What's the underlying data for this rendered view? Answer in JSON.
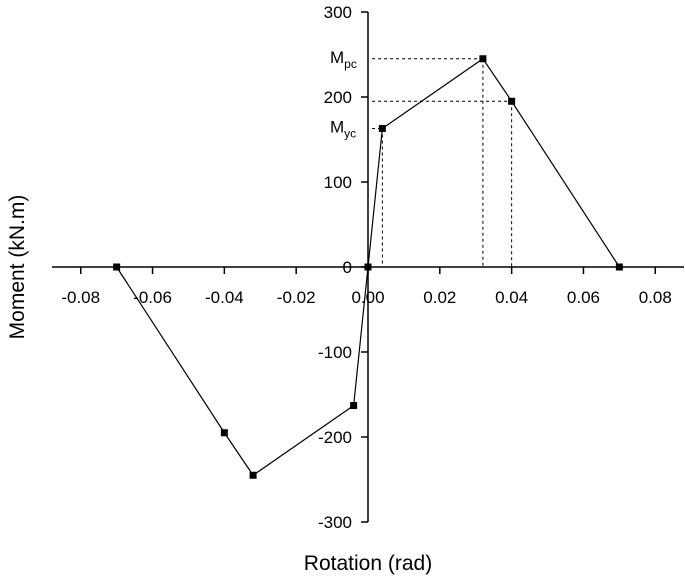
{
  "chart_data": {
    "type": "line",
    "x_label": "Rotation (rad)",
    "y_label": "Moment (kN.m)",
    "series": [
      {
        "color": "#000000",
        "x": [
          -0.07,
          -0.04,
          -0.032,
          -0.004,
          0,
          0.004,
          0.032,
          0.04,
          0.07
        ],
        "values": [
          0,
          -195,
          -245,
          -163,
          0,
          163,
          245,
          195,
          0
        ]
      }
    ],
    "xlim": [
      -0.088,
      0.088
    ],
    "xticks": [
      -0.08,
      -0.06,
      -0.04,
      -0.02,
      {
        "value": 0,
        "label": "0.00"
      },
      0.02,
      0.04,
      0.06,
      0.08
    ],
    "ylim": [
      -300,
      300
    ],
    "yticks": [
      -300,
      -200,
      -100,
      0,
      100,
      200,
      300
    ],
    "dashed_guides": [
      {
        "x": 0.004,
        "y": 163
      },
      {
        "x": 0.032,
        "y": 245
      },
      {
        "x": 0.04,
        "y": 195
      }
    ],
    "annotations": [
      {
        "text": "M",
        "sub": "yc"
      },
      {
        "text": "M",
        "sub": "pc"
      }
    ]
  }
}
